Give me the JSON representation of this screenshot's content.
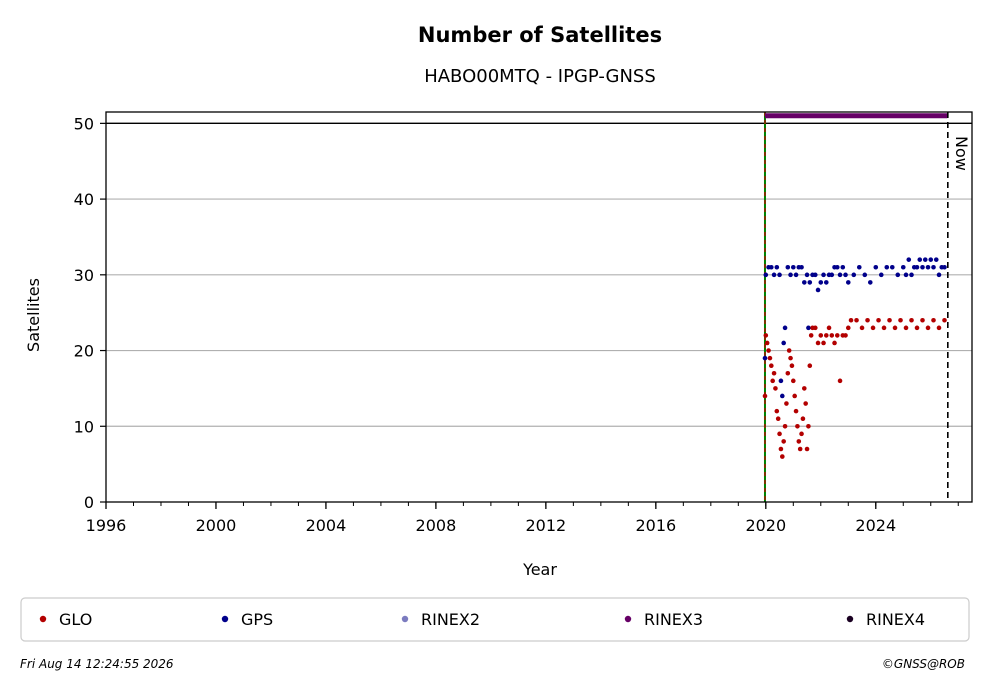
{
  "chart_data": {
    "type": "scatter",
    "title": "Number of Satellites",
    "subtitle": "HABO00MTQ - IPGP-GNSS",
    "xlabel": "Year",
    "ylabel": "Satellites",
    "xlim": [
      1996,
      2027.5
    ],
    "ylim": [
      0,
      51.5
    ],
    "x_ticks": [
      1996,
      2000,
      2004,
      2008,
      2012,
      2016,
      2020,
      2024
    ],
    "y_ticks": [
      0,
      10,
      20,
      30,
      40,
      50
    ],
    "grid": "horizontal",
    "legend_position": "bottom",
    "now_label": "Now",
    "now_x": 2026.62,
    "start_x": 2019.97,
    "reference_line_y": 50,
    "colors": {
      "GLO": "#b30000",
      "GPS": "#00008b",
      "RINEX2": "#7b7bbf",
      "RINEX3": "#660066",
      "RINEX4": "#1a0022",
      "start_line_green": "#008000",
      "start_line_red": "#cc0000"
    },
    "legend": [
      "GLO",
      "GPS",
      "RINEX2",
      "RINEX3",
      "RINEX4"
    ],
    "series": [
      {
        "name": "RINEX3",
        "segments": [
          {
            "x_start": 2019.97,
            "x_end": 2026.6,
            "y": 51
          }
        ]
      },
      {
        "name": "GPS",
        "points": [
          [
            2019.97,
            19
          ],
          [
            2020.0,
            30
          ],
          [
            2020.1,
            31
          ],
          [
            2020.2,
            31
          ],
          [
            2020.3,
            30
          ],
          [
            2020.4,
            31
          ],
          [
            2020.5,
            30
          ],
          [
            2020.55,
            16
          ],
          [
            2020.6,
            14
          ],
          [
            2020.65,
            21
          ],
          [
            2020.7,
            23
          ],
          [
            2020.8,
            31
          ],
          [
            2020.9,
            30
          ],
          [
            2021.0,
            31
          ],
          [
            2021.1,
            30
          ],
          [
            2021.2,
            31
          ],
          [
            2021.3,
            31
          ],
          [
            2021.4,
            29
          ],
          [
            2021.5,
            30
          ],
          [
            2021.55,
            23
          ],
          [
            2021.6,
            29
          ],
          [
            2021.7,
            30
          ],
          [
            2021.8,
            30
          ],
          [
            2021.9,
            28
          ],
          [
            2022.0,
            29
          ],
          [
            2022.1,
            30
          ],
          [
            2022.2,
            29
          ],
          [
            2022.3,
            30
          ],
          [
            2022.4,
            30
          ],
          [
            2022.5,
            31
          ],
          [
            2022.6,
            31
          ],
          [
            2022.7,
            30
          ],
          [
            2022.8,
            31
          ],
          [
            2022.9,
            30
          ],
          [
            2023.0,
            29
          ],
          [
            2023.2,
            30
          ],
          [
            2023.4,
            31
          ],
          [
            2023.6,
            30
          ],
          [
            2023.8,
            29
          ],
          [
            2024.0,
            31
          ],
          [
            2024.2,
            30
          ],
          [
            2024.4,
            31
          ],
          [
            2024.6,
            31
          ],
          [
            2024.8,
            30
          ],
          [
            2025.0,
            31
          ],
          [
            2025.1,
            30
          ],
          [
            2025.2,
            32
          ],
          [
            2025.3,
            30
          ],
          [
            2025.4,
            31
          ],
          [
            2025.5,
            31
          ],
          [
            2025.6,
            32
          ],
          [
            2025.7,
            31
          ],
          [
            2025.8,
            32
          ],
          [
            2025.9,
            31
          ],
          [
            2026.0,
            32
          ],
          [
            2026.1,
            31
          ],
          [
            2026.2,
            32
          ],
          [
            2026.3,
            30
          ],
          [
            2026.4,
            31
          ],
          [
            2026.5,
            31
          ]
        ]
      },
      {
        "name": "GLO",
        "points": [
          [
            2019.97,
            14
          ],
          [
            2020.0,
            22
          ],
          [
            2020.05,
            21
          ],
          [
            2020.1,
            20
          ],
          [
            2020.15,
            19
          ],
          [
            2020.2,
            18
          ],
          [
            2020.25,
            16
          ],
          [
            2020.3,
            17
          ],
          [
            2020.35,
            15
          ],
          [
            2020.4,
            12
          ],
          [
            2020.45,
            11
          ],
          [
            2020.5,
            9
          ],
          [
            2020.55,
            7
          ],
          [
            2020.6,
            6
          ],
          [
            2020.65,
            8
          ],
          [
            2020.7,
            10
          ],
          [
            2020.75,
            13
          ],
          [
            2020.8,
            17
          ],
          [
            2020.85,
            20
          ],
          [
            2020.9,
            19
          ],
          [
            2020.95,
            18
          ],
          [
            2021.0,
            16
          ],
          [
            2021.05,
            14
          ],
          [
            2021.1,
            12
          ],
          [
            2021.15,
            10
          ],
          [
            2021.2,
            8
          ],
          [
            2021.25,
            7
          ],
          [
            2021.3,
            9
          ],
          [
            2021.35,
            11
          ],
          [
            2021.4,
            15
          ],
          [
            2021.45,
            13
          ],
          [
            2021.5,
            7
          ],
          [
            2021.55,
            10
          ],
          [
            2021.6,
            18
          ],
          [
            2021.65,
            22
          ],
          [
            2021.7,
            23
          ],
          [
            2021.8,
            23
          ],
          [
            2021.9,
            21
          ],
          [
            2022.0,
            22
          ],
          [
            2022.1,
            21
          ],
          [
            2022.2,
            22
          ],
          [
            2022.3,
            23
          ],
          [
            2022.4,
            22
          ],
          [
            2022.5,
            21
          ],
          [
            2022.6,
            22
          ],
          [
            2022.7,
            16
          ],
          [
            2022.8,
            22
          ],
          [
            2022.9,
            22
          ],
          [
            2023.0,
            23
          ],
          [
            2023.1,
            24
          ],
          [
            2023.3,
            24
          ],
          [
            2023.5,
            23
          ],
          [
            2023.7,
            24
          ],
          [
            2023.9,
            23
          ],
          [
            2024.1,
            24
          ],
          [
            2024.3,
            23
          ],
          [
            2024.5,
            24
          ],
          [
            2024.7,
            23
          ],
          [
            2024.9,
            24
          ],
          [
            2025.1,
            23
          ],
          [
            2025.3,
            24
          ],
          [
            2025.5,
            23
          ],
          [
            2025.7,
            24
          ],
          [
            2025.9,
            23
          ],
          [
            2026.1,
            24
          ],
          [
            2026.3,
            23
          ],
          [
            2026.5,
            24
          ]
        ]
      }
    ]
  },
  "footer": {
    "timestamp": "Fri Aug 14 12:24:55 2026",
    "credit": "©GNSS@ROB"
  }
}
